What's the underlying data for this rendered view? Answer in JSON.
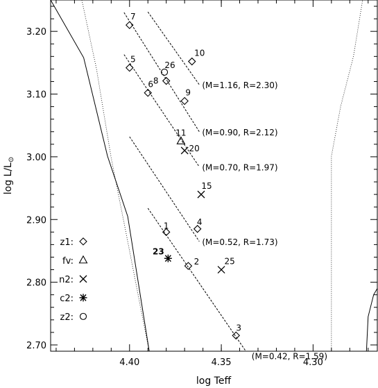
{
  "chart_data": {
    "type": "scatter",
    "title": "",
    "xlabel": "log Teff",
    "ylabel_main": "log L/L",
    "ylabel_sub": "⊙",
    "xlim": [
      4.443,
      4.265
    ],
    "ylim": [
      2.69,
      3.25
    ],
    "x_reversed": true,
    "grid": false,
    "xticks": [
      4.4,
      4.35,
      4.3
    ],
    "xtick_labels": [
      "4.40",
      "4.35",
      "4.30"
    ],
    "yticks": [
      2.7,
      2.8,
      2.9,
      3.0,
      3.1,
      3.2
    ],
    "ytick_labels": [
      "2.70",
      "2.80",
      "2.90",
      "3.00",
      "3.10",
      "3.20"
    ],
    "legend": {
      "placement": "bottom-left",
      "entries": [
        {
          "label": "z1:",
          "marker": "diamond"
        },
        {
          "label": "fv:",
          "marker": "triangle"
        },
        {
          "label": "n2:",
          "marker": "cross"
        },
        {
          "label": "c2:",
          "marker": "asterisk"
        },
        {
          "label": "z2:",
          "marker": "circle"
        }
      ]
    },
    "series": [
      {
        "name": "z1",
        "marker": "diamond",
        "points": [
          {
            "label": "1",
            "x": 4.38,
            "y": 2.88
          },
          {
            "label": "2",
            "x": 4.368,
            "y": 2.826
          },
          {
            "label": "3",
            "x": 4.342,
            "y": 2.715
          },
          {
            "label": "4",
            "x": 4.363,
            "y": 2.885
          },
          {
            "label": "5",
            "x": 4.4,
            "y": 3.142
          },
          {
            "label": "6",
            "x": 4.39,
            "y": 3.102
          },
          {
            "label": "7",
            "x": 4.4,
            "y": 3.21
          },
          {
            "label": "8",
            "x": 4.38,
            "y": 3.121
          },
          {
            "label": "9",
            "x": 4.37,
            "y": 3.089
          },
          {
            "label": "10",
            "x": 4.366,
            "y": 3.152
          }
        ]
      },
      {
        "name": "fv",
        "marker": "triangle",
        "points": [
          {
            "label": "11",
            "x": 4.372,
            "y": 3.025
          }
        ]
      },
      {
        "name": "n2",
        "marker": "cross",
        "points": [
          {
            "label": "20",
            "x": 4.37,
            "y": 3.01
          },
          {
            "label": "15",
            "x": 4.361,
            "y": 2.94
          },
          {
            "label": "25",
            "x": 4.35,
            "y": 2.82
          }
        ]
      },
      {
        "name": "c2",
        "marker": "asterisk",
        "points": [
          {
            "label": "23",
            "x": 4.379,
            "y": 2.838
          }
        ]
      },
      {
        "name": "z2",
        "marker": "circle",
        "points": [
          {
            "label": "26",
            "x": 4.381,
            "y": 3.135
          }
        ]
      }
    ],
    "mass_radius_lines": [
      {
        "label": "(M=1.16, R=2.30)",
        "from": [
          4.39,
          3.231
        ],
        "to": [
          4.362,
          3.115
        ]
      },
      {
        "label": "(M=0.90, R=2.12)",
        "from": [
          4.403,
          3.23
        ],
        "to": [
          4.362,
          3.04
        ]
      },
      {
        "label": "(M=0.70, R=1.97)",
        "from": [
          4.403,
          3.163
        ],
        "to": [
          4.362,
          2.984
        ]
      },
      {
        "label": "(M=0.52, R=1.73)",
        "from": [
          4.4,
          3.032
        ],
        "to": [
          4.362,
          2.865
        ]
      },
      {
        "label": "(M=0.42, R=1.59)",
        "from": [
          4.39,
          2.918
        ],
        "to": [
          4.335,
          2.683
        ]
      }
    ],
    "boundary_curves": [
      {
        "style": "solid",
        "points": [
          [
            4.443,
            3.25
          ],
          [
            4.425,
            3.158
          ],
          [
            4.412,
            3.001
          ],
          [
            4.401,
            2.905
          ],
          [
            4.389,
            2.685
          ]
        ]
      },
      {
        "style": "dotted",
        "points": [
          [
            4.426,
            3.25
          ],
          [
            4.418,
            3.14
          ],
          [
            4.41,
            2.998
          ],
          [
            4.402,
            2.88
          ],
          [
            4.389,
            2.685
          ]
        ]
      },
      {
        "style": "dotted",
        "points": [
          [
            4.29,
            2.685
          ],
          [
            4.29,
            3.001
          ],
          [
            4.285,
            3.08
          ],
          [
            4.278,
            3.16
          ],
          [
            4.273,
            3.25
          ]
        ]
      },
      {
        "style": "solid",
        "points": [
          [
            4.271,
            2.685
          ],
          [
            4.27,
            2.745
          ],
          [
            4.267,
            2.78
          ],
          [
            4.265,
            2.79
          ]
        ]
      }
    ]
  }
}
